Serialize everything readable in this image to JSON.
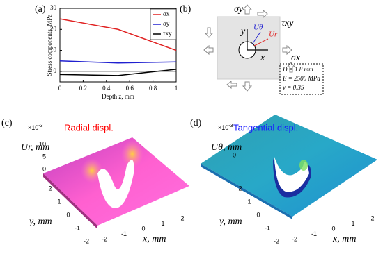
{
  "chart_data": [
    {
      "type": "line",
      "panel": "(a)",
      "x_label": "Depth z, mm",
      "y_label": "Stress components, MPa",
      "x": [
        0,
        0.5,
        1
      ],
      "series": [
        {
          "name": "σx",
          "color": "#e02020",
          "values": [
            25,
            20,
            10
          ]
        },
        {
          "name": "σy",
          "color": "#2020d0",
          "values": [
            5,
            4,
            4.5
          ]
        },
        {
          "name": "τxy",
          "color": "#000000",
          "values": [
            -1.5,
            -2,
            1
          ]
        }
      ],
      "xlim": [
        0,
        1
      ],
      "xticks": [
        0,
        0.2,
        0.4,
        0.6,
        0.8,
        1
      ],
      "ylim": [
        -5,
        30
      ],
      "yticks": [
        0,
        10,
        20,
        30
      ],
      "legend": "upper right"
    },
    {
      "type": "surface",
      "panel": "(c)",
      "title": "Radial displ.",
      "title_color": "#ff0000",
      "z_label": "Ur, mm",
      "z_exponent": {
        "base": "×10",
        "exp": "-3"
      },
      "x_label": "x, mm",
      "y_label": "y, mm",
      "zticks": [
        0,
        5,
        10
      ],
      "xticks": [
        -2,
        -1,
        0,
        1,
        2
      ],
      "yticks": [
        -2,
        -1,
        0,
        1,
        2
      ]
    },
    {
      "type": "surface",
      "panel": "(d)",
      "title": "Tangential displ.",
      "title_color": "#1a1aff",
      "z_label": "Uθ, mm",
      "z_exponent": {
        "base": "×10",
        "exp": "-3"
      },
      "x_label": "x, mm",
      "y_label": "y, mm",
      "zticks": [
        0
      ],
      "xticks": [
        -2,
        -1,
        0,
        1,
        2
      ],
      "yticks": [
        -2,
        -1,
        0,
        1,
        2
      ]
    }
  ],
  "diagram": {
    "panel": "(b)",
    "sigma_y": "σy",
    "tau_xy": "τxy",
    "sigma_x": "σx",
    "u_theta": "Uθ",
    "u_r": "Ur",
    "axis_y": "y",
    "axis_x": "x",
    "params": [
      "D = 1.8 mm",
      "E = 2500 MPa",
      "ν = 0.35"
    ]
  }
}
